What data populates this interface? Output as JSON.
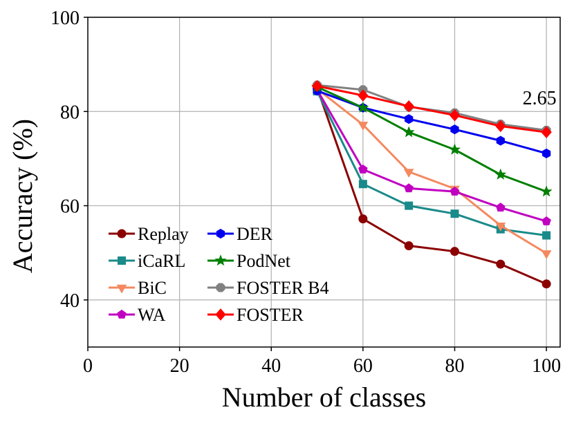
{
  "chart_data": {
    "type": "line",
    "title": "",
    "xlabel": "Number of classes",
    "ylabel": "Accuracy (%)",
    "xlim": [
      0,
      103
    ],
    "ylim": [
      30,
      100
    ],
    "xticks": [
      0,
      20,
      40,
      60,
      80,
      100
    ],
    "yticks": [
      40,
      60,
      80,
      100
    ],
    "grid": true,
    "legend_position": "lower-left",
    "x": [
      50,
      60,
      70,
      80,
      90,
      100
    ],
    "series": [
      {
        "name": "Replay",
        "color": "#8b0000",
        "marker": "circle",
        "values": [
          85.0,
          57.2,
          51.5,
          50.3,
          47.6,
          43.4
        ]
      },
      {
        "name": "iCaRL",
        "color": "#1a8a8a",
        "marker": "square",
        "values": [
          84.3,
          64.6,
          60.0,
          58.3,
          55.0,
          53.7
        ]
      },
      {
        "name": "BiC",
        "color": "#f4895f",
        "marker": "triangle-down",
        "values": [
          84.8,
          77.2,
          67.2,
          63.6,
          55.8,
          49.9
        ]
      },
      {
        "name": "WA",
        "color": "#c000c0",
        "marker": "pentagon",
        "values": [
          84.6,
          67.7,
          63.7,
          63.0,
          59.6,
          56.7
        ]
      },
      {
        "name": "DER",
        "color": "#0000ee",
        "marker": "hexagon",
        "values": [
          84.4,
          80.8,
          78.4,
          76.2,
          73.8,
          71.1
        ]
      },
      {
        "name": "PodNet",
        "color": "#007f00",
        "marker": "star",
        "values": [
          85.2,
          80.8,
          75.6,
          71.9,
          66.6,
          63.0
        ]
      },
      {
        "name": "FOSTER B4",
        "color": "#808080",
        "marker": "octagon",
        "values": [
          85.6,
          84.6,
          81.0,
          79.7,
          77.3,
          76.0
        ]
      },
      {
        "name": "FOSTER",
        "color": "#ff0000",
        "marker": "diamond",
        "values": [
          85.4,
          83.4,
          81.1,
          79.2,
          76.9,
          75.6
        ]
      }
    ],
    "annotations": [
      {
        "text": "2.65",
        "x": 98.5,
        "y": 81.5
      }
    ]
  }
}
